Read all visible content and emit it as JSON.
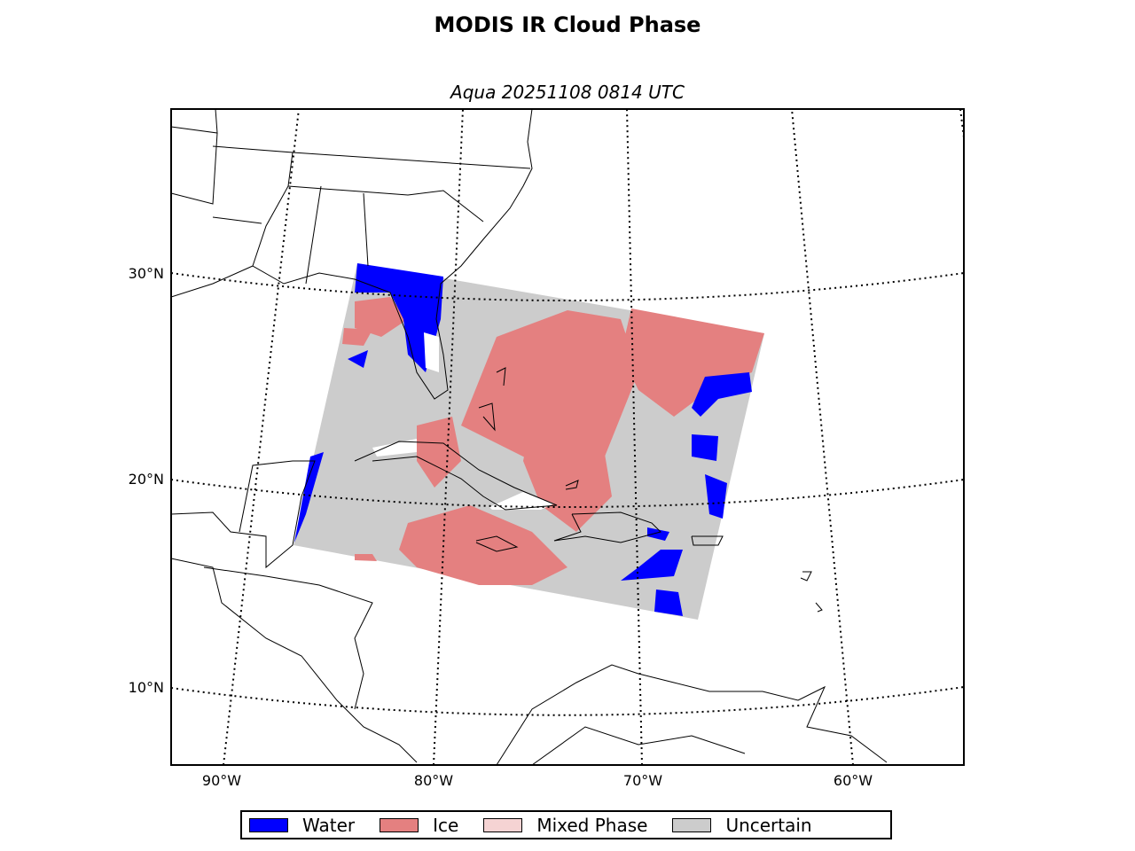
{
  "title": "MODIS IR Cloud Phase",
  "subtitle": "Aqua 20251108 0814 UTC",
  "lat_labels": [
    "30°N",
    "20°N",
    "10°N"
  ],
  "lon_labels": [
    "90°W",
    "80°W",
    "70°W",
    "60°W"
  ],
  "legend": [
    {
      "label": "Water",
      "color": "#0000ff"
    },
    {
      "label": "Ice",
      "color": "#e48080"
    },
    {
      "label": "Mixed Phase",
      "color": "#f5d3d3"
    },
    {
      "label": "Uncertain",
      "color": "#cccccc"
    }
  ],
  "colors": {
    "clear": "#ffffff",
    "coastline": "#000000"
  }
}
